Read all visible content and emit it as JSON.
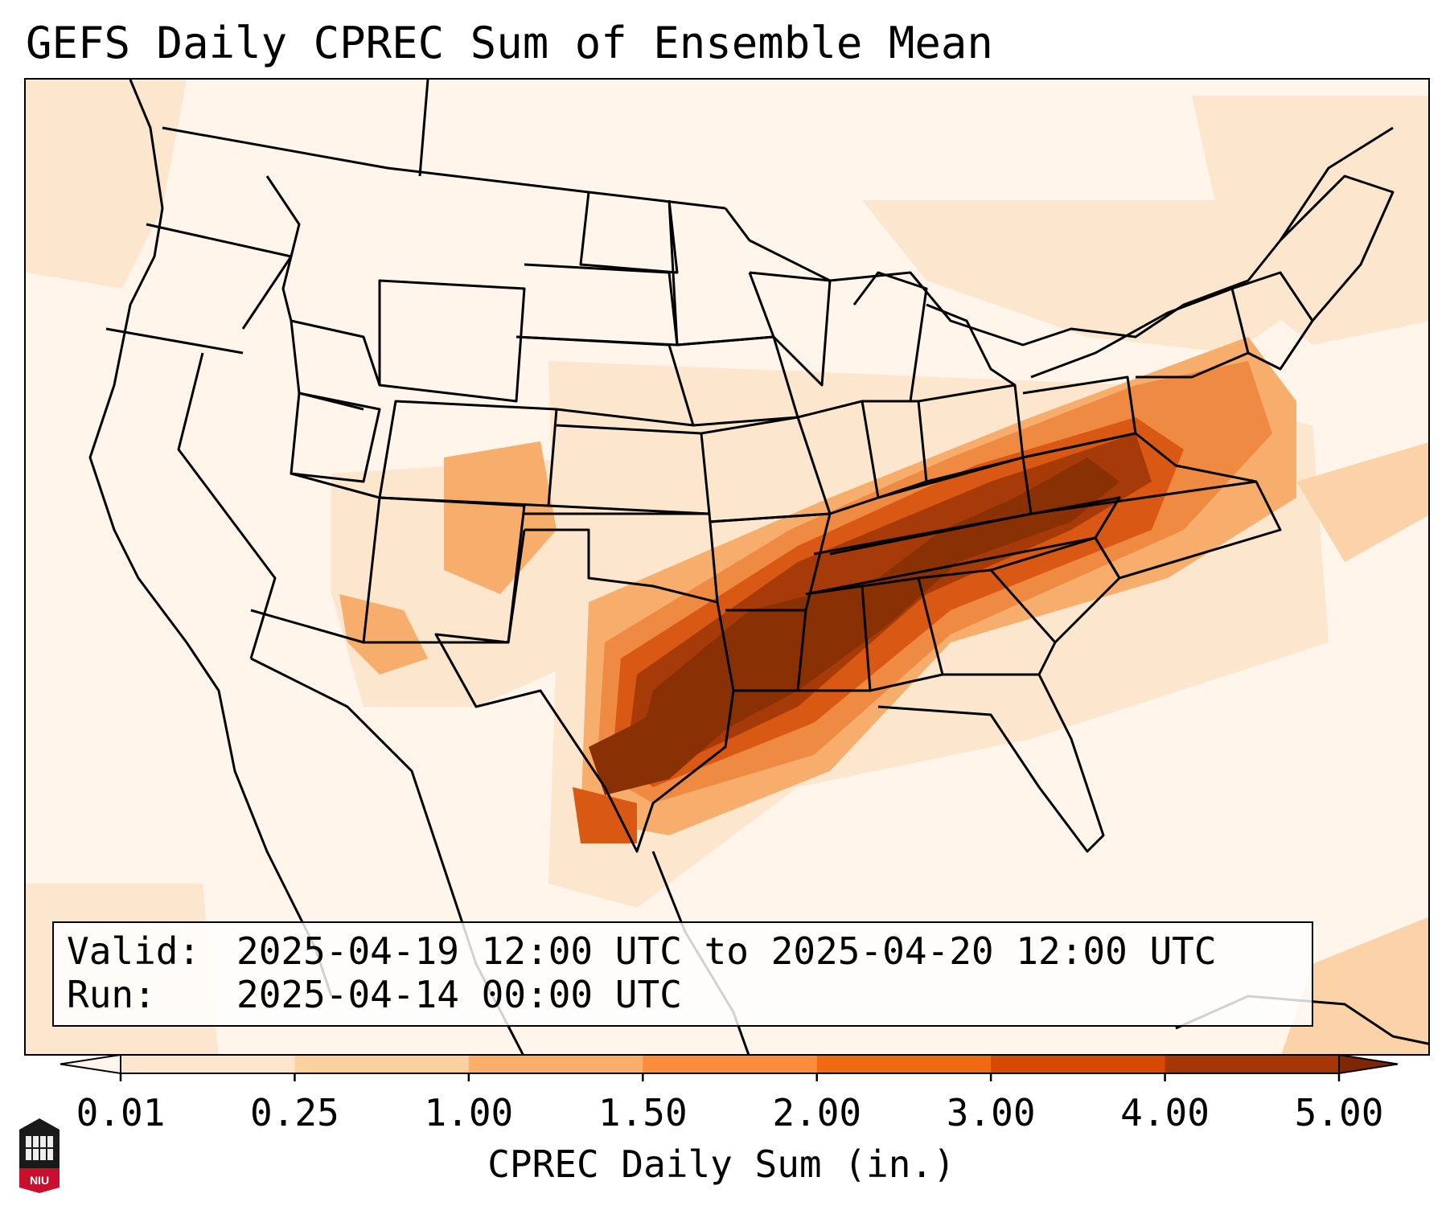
{
  "title": "GEFS Daily CPREC Sum of Ensemble Mean",
  "info": {
    "valid_label": "Valid:",
    "valid_value": "2025-04-19 12:00 UTC to 2025-04-20 12:00 UTC",
    "run_label": "Run:",
    "run_value": "2025-04-14 00:00 UTC"
  },
  "colorbar": {
    "label": "CPREC Daily Sum (in.)",
    "ticks": [
      "0.01",
      "0.25",
      "1.00",
      "1.50",
      "2.00",
      "3.00",
      "4.00",
      "5.00"
    ],
    "colors": [
      "#fff5eb",
      "#fee6ce",
      "#fdd0a2",
      "#fdae6b",
      "#fd8d3c",
      "#f16913",
      "#d94801",
      "#a63603",
      "#7f2704"
    ],
    "extend": "both"
  },
  "map": {
    "region": "Contiguous United States",
    "variable": "GEFS daily convective precipitation sum (ensemble mean)",
    "max_band": "4.00–5.00+ in. over Oklahoma, Arkansas and north Texas",
    "colors": {
      "very_light": "#fff5eb",
      "light": "#fde6ce",
      "light_mid": "#fcd3a8",
      "mid": "#f7ad6c",
      "orange": "#ee8a42",
      "dark_orange": "#d95814",
      "brown": "#a63a08",
      "darkest": "#8a3005"
    }
  },
  "logo": {
    "text": "NIU"
  }
}
